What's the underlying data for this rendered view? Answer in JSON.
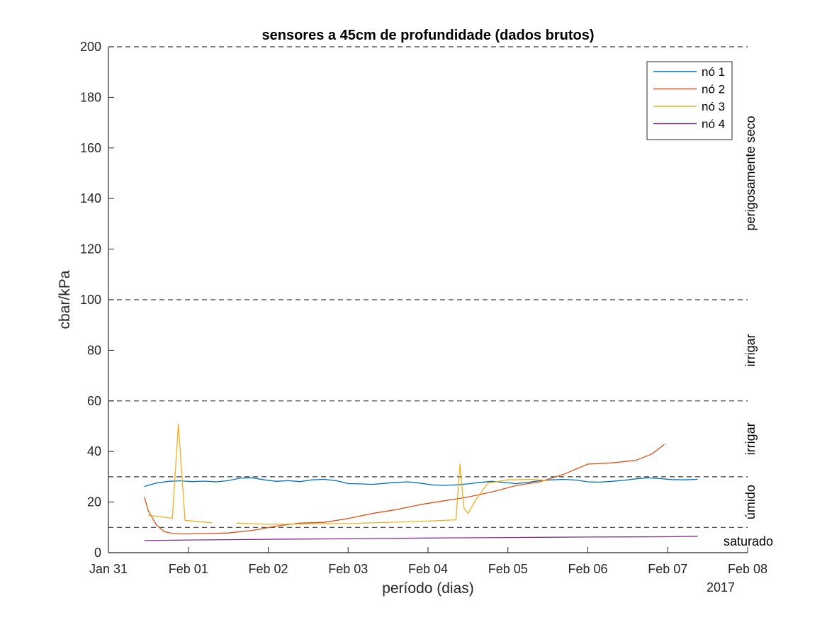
{
  "chart_data": {
    "type": "line",
    "title": "sensores a 45cm de profundidade (dados brutos)",
    "xlabel": "período (dias)",
    "ylabel": "cbar/kPa",
    "year_label": "2017",
    "x_range": [
      "2017-01-31",
      "2017-02-08"
    ],
    "x_tick_labels": [
      "Jan 31",
      "Feb 01",
      "Feb 02",
      "Feb 03",
      "Feb 04",
      "Feb 05",
      "Feb 06",
      "Feb 07",
      "Feb 08"
    ],
    "ylim": [
      0,
      200
    ],
    "y_ticks": [
      0,
      20,
      40,
      60,
      80,
      100,
      120,
      140,
      160,
      180,
      200
    ],
    "grid": false,
    "legend_position": "top-right",
    "threshold_lines": [
      10,
      30,
      60,
      100,
      200
    ],
    "zone_labels": [
      {
        "text": "perigosamente seco",
        "y": 150
      },
      {
        "text": "irrigar",
        "y": 80
      },
      {
        "text": "irrigar",
        "y": 45
      },
      {
        "text": "úmido",
        "y": 20
      },
      {
        "text": "saturado",
        "y": 4.5
      }
    ],
    "series": [
      {
        "name": "nó 1",
        "color": "#0072BD",
        "points": [
          [
            "2017-01-31T10:48",
            26.2
          ],
          [
            "2017-01-31T14:24",
            27.5
          ],
          [
            "2017-01-31T18:00",
            28.2
          ],
          [
            "2017-01-31T21:36",
            28.4
          ],
          [
            "2017-02-01T01:12",
            28.1
          ],
          [
            "2017-02-01T04:48",
            28.3
          ],
          [
            "2017-02-01T08:24",
            28.0
          ],
          [
            "2017-02-01T12:00",
            28.5
          ],
          [
            "2017-02-01T15:36",
            29.5
          ],
          [
            "2017-02-01T19:12",
            29.6
          ],
          [
            "2017-02-01T22:48",
            28.8
          ],
          [
            "2017-02-02T02:24",
            28.2
          ],
          [
            "2017-02-02T06:00",
            28.5
          ],
          [
            "2017-02-02T09:36",
            28.1
          ],
          [
            "2017-02-02T13:12",
            28.8
          ],
          [
            "2017-02-02T16:48",
            29.0
          ],
          [
            "2017-02-02T20:24",
            28.5
          ],
          [
            "2017-02-03T00:00",
            27.3
          ],
          [
            "2017-02-03T03:36",
            27.2
          ],
          [
            "2017-02-03T07:12",
            27.0
          ],
          [
            "2017-02-03T10:48",
            27.4
          ],
          [
            "2017-02-03T14:24",
            27.8
          ],
          [
            "2017-02-03T18:00",
            28.0
          ],
          [
            "2017-02-03T21:36",
            27.5
          ],
          [
            "2017-02-04T01:12",
            26.8
          ],
          [
            "2017-02-04T04:48",
            26.6
          ],
          [
            "2017-02-04T08:24",
            26.8
          ],
          [
            "2017-02-04T12:00",
            27.2
          ],
          [
            "2017-02-04T15:36",
            27.8
          ],
          [
            "2017-02-04T19:12",
            28.2
          ],
          [
            "2017-02-04T22:48",
            27.8
          ],
          [
            "2017-02-05T02:24",
            27.3
          ],
          [
            "2017-02-05T06:00",
            27.8
          ],
          [
            "2017-02-05T09:36",
            28.5
          ],
          [
            "2017-02-05T13:12",
            28.8
          ],
          [
            "2017-02-05T16:48",
            29.0
          ],
          [
            "2017-02-05T20:24",
            28.7
          ],
          [
            "2017-02-06T00:00",
            28.0
          ],
          [
            "2017-02-06T03:36",
            27.9
          ],
          [
            "2017-02-06T07:12",
            28.2
          ],
          [
            "2017-02-06T10:48",
            28.6
          ],
          [
            "2017-02-06T14:24",
            29.2
          ],
          [
            "2017-02-06T18:00",
            29.6
          ],
          [
            "2017-02-06T21:36",
            29.3
          ],
          [
            "2017-02-07T01:12",
            28.9
          ],
          [
            "2017-02-07T04:48",
            28.8
          ],
          [
            "2017-02-07T09:00",
            29.0
          ]
        ]
      },
      {
        "name": "nó 2",
        "color": "#D95319",
        "points": [
          [
            "2017-01-31T10:48",
            22.0
          ],
          [
            "2017-01-31T12:00",
            16.5
          ],
          [
            "2017-01-31T14:24",
            11.0
          ],
          [
            "2017-01-31T16:48",
            8.3
          ],
          [
            "2017-01-31T19:12",
            7.6
          ],
          [
            "2017-01-31T22:48",
            7.4
          ],
          [
            "2017-02-01T04:48",
            7.6
          ],
          [
            "2017-02-01T12:00",
            7.8
          ],
          [
            "2017-02-01T19:12",
            8.8
          ],
          [
            "2017-02-02T02:24",
            10.5
          ],
          [
            "2017-02-02T09:36",
            11.7
          ],
          [
            "2017-02-02T16:48",
            12.0
          ],
          [
            "2017-02-03T00:00",
            13.5
          ],
          [
            "2017-02-03T07:12",
            15.5
          ],
          [
            "2017-02-03T14:24",
            17.0
          ],
          [
            "2017-02-03T21:36",
            19.0
          ],
          [
            "2017-02-04T04:48",
            20.5
          ],
          [
            "2017-02-04T12:00",
            22.0
          ],
          [
            "2017-02-04T19:12",
            24.0
          ],
          [
            "2017-02-05T02:24",
            26.5
          ],
          [
            "2017-02-05T09:36",
            28.0
          ],
          [
            "2017-02-05T16:48",
            31.0
          ],
          [
            "2017-02-06T00:00",
            35.0
          ],
          [
            "2017-02-06T07:12",
            35.5
          ],
          [
            "2017-02-06T14:24",
            36.5
          ],
          [
            "2017-02-06T19:12",
            39.0
          ],
          [
            "2017-02-06T23:00",
            42.8
          ]
        ]
      },
      {
        "name": "nó 3",
        "color": "#EDB120",
        "segments": [
          [
            [
              "2017-01-31T12:00",
              14.8
            ],
            [
              "2017-01-31T19:12",
              13.6
            ],
            [
              "2017-01-31T21:00",
              50.8
            ],
            [
              "2017-01-31T23:00",
              12.8
            ],
            [
              "2017-02-01T07:12",
              11.8
            ]
          ],
          [
            [
              "2017-02-01T14:24",
              11.7
            ],
            [
              "2017-02-02T00:00",
              11.2
            ],
            [
              "2017-02-03T00:00",
              11.5
            ],
            [
              "2017-02-04T00:00",
              12.5
            ],
            [
              "2017-02-04T08:24",
              13.0
            ],
            [
              "2017-02-04T09:36",
              35.0
            ],
            [
              "2017-02-04T10:48",
              17.5
            ],
            [
              "2017-02-04T12:00",
              15.5
            ],
            [
              "2017-02-04T14:24",
              21.0
            ],
            [
              "2017-02-04T18:00",
              27.5
            ],
            [
              "2017-02-05T00:00",
              28.8
            ],
            [
              "2017-02-05T07:12",
              29.0
            ],
            [
              "2017-02-05T12:00",
              28.5
            ]
          ]
        ]
      },
      {
        "name": "nó 4",
        "color": "#7E2F8E",
        "points": [
          [
            "2017-01-31T10:48",
            4.8
          ],
          [
            "2017-02-01T00:00",
            5.0
          ],
          [
            "2017-02-02T00:00",
            5.3
          ],
          [
            "2017-02-03T00:00",
            5.5
          ],
          [
            "2017-02-04T00:00",
            5.8
          ],
          [
            "2017-02-05T00:00",
            6.0
          ],
          [
            "2017-02-06T00:00",
            6.2
          ],
          [
            "2017-02-07T00:00",
            6.3
          ],
          [
            "2017-02-07T09:00",
            6.5
          ]
        ]
      }
    ]
  }
}
